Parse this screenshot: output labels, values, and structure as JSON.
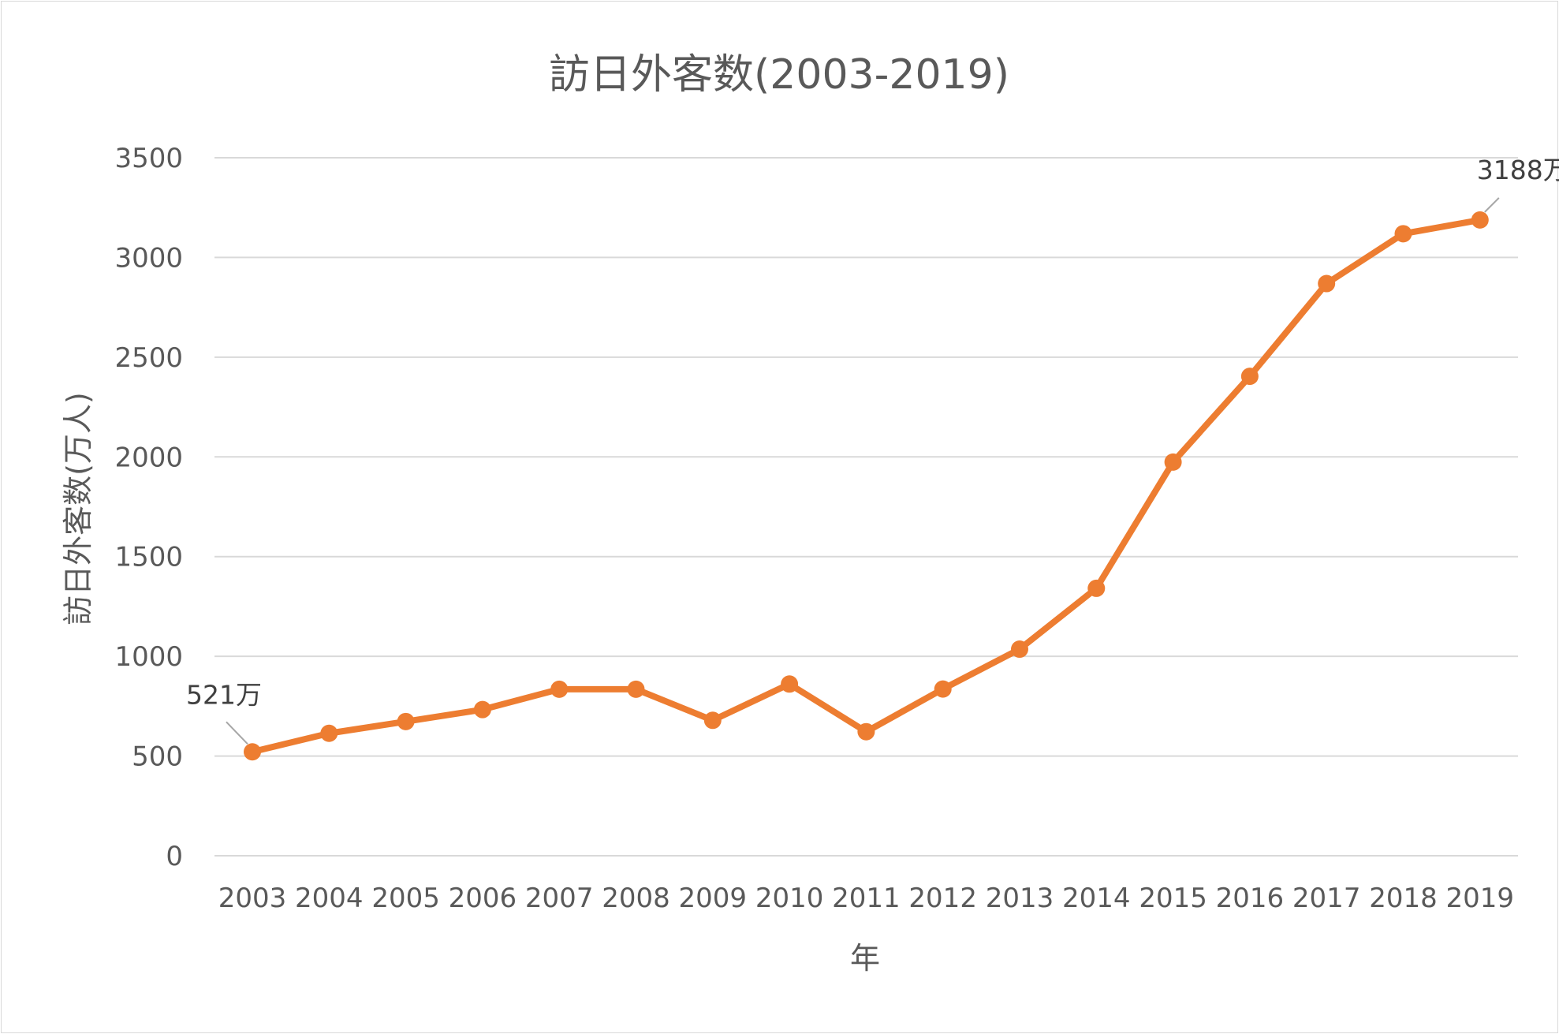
{
  "chart_data": {
    "type": "line",
    "title": "訪日外客数(2003-2019)",
    "xlabel": "年",
    "ylabel": "訪日外客数(万人)",
    "categories": [
      "2003",
      "2004",
      "2005",
      "2006",
      "2007",
      "2008",
      "2009",
      "2010",
      "2011",
      "2012",
      "2013",
      "2014",
      "2015",
      "2016",
      "2017",
      "2018",
      "2019"
    ],
    "series": [
      {
        "values": [
          521,
          614,
          673,
          733,
          835,
          835,
          679,
          861,
          622,
          836,
          1036,
          1341,
          1974,
          2404,
          2869,
          3119,
          3188
        ]
      }
    ],
    "ylim": [
      0,
      3500
    ],
    "yticks": [
      0,
      500,
      1000,
      1500,
      2000,
      2500,
      3000,
      3500
    ],
    "grid": true,
    "legend": "none",
    "colors": {
      "line": "#ed7d31",
      "grid": "#d9d9d9",
      "text": "#595959"
    },
    "annotations": [
      {
        "index": 0,
        "text": "521万"
      },
      {
        "index": 16,
        "text": "3188万"
      }
    ]
  }
}
